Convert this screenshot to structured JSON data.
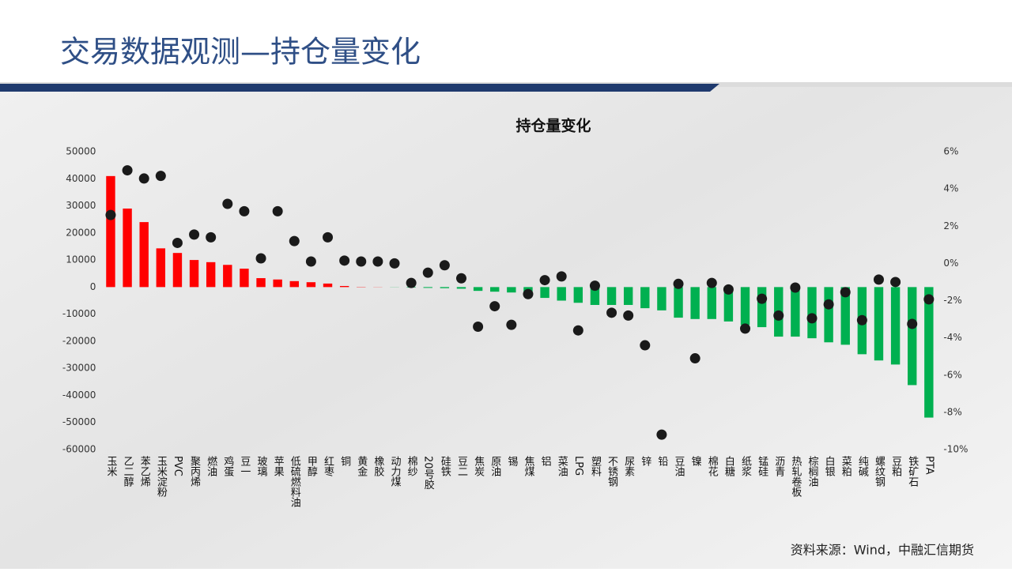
{
  "slide": {
    "title": "交易数据观测—持仓量变化",
    "source": "资料来源：Wind，中融汇信期货"
  },
  "chart_data": {
    "type": "bar",
    "title": "持仓量变化",
    "categories": [
      "玉米",
      "乙二醇",
      "苯乙烯",
      "玉米淀粉",
      "PVC",
      "聚丙烯",
      "燃油",
      "鸡蛋",
      "豆一",
      "玻璃",
      "苹果",
      "低硫燃料油",
      "甲醇",
      "红枣",
      "铜",
      "黄金",
      "橡胶",
      "动力煤",
      "棉纱",
      "20号胶",
      "硅铁",
      "豆二",
      "焦炭",
      "原油",
      "锡",
      "焦煤",
      "铝",
      "菜油",
      "LPG",
      "塑料",
      "不锈钢",
      "尿素",
      "锌",
      "铅",
      "豆油",
      "镍",
      "棉花",
      "白糖",
      "纸浆",
      "锰硅",
      "沥青",
      "热轧卷板",
      "棕榈油",
      "白银",
      "菜粕",
      "纯碱",
      "螺纹钢",
      "豆粕",
      "铁矿石",
      "PTA"
    ],
    "series": [
      {
        "type": "bar",
        "color": "#ff0000",
        "negative_color": "#00b050",
        "values": [
          41000,
          29000,
          24000,
          14300,
          12600,
          10000,
          9200,
          8200,
          6800,
          3300,
          2800,
          2200,
          1800,
          1300,
          400,
          100,
          50,
          -50,
          -200,
          -300,
          -400,
          -600,
          -1400,
          -1700,
          -2000,
          -2800,
          -4000,
          -5000,
          -5800,
          -6600,
          -6600,
          -6600,
          -7800,
          -8600,
          -11300,
          -11800,
          -11800,
          -12700,
          -14000,
          -14800,
          -18300,
          -18300,
          -18900,
          -20400,
          -21300,
          -24800,
          -27100,
          -28600,
          -36200,
          -48200
        ]
      },
      {
        "type": "scatter",
        "axis": "y2",
        "color": "#1a1a1a",
        "values": [
          2.6,
          5.0,
          4.56,
          4.7,
          1.1,
          1.55,
          1.4,
          3.2,
          2.8,
          0.27,
          2.8,
          1.2,
          0.1,
          1.4,
          0.15,
          0.1,
          0.1,
          0.0,
          -1.05,
          -0.5,
          -0.1,
          -0.8,
          -3.4,
          -2.3,
          -3.3,
          -1.65,
          -0.9,
          -0.7,
          -3.6,
          -1.2,
          -2.65,
          -2.8,
          -4.4,
          -9.2,
          -1.1,
          -5.1,
          -1.05,
          -1.4,
          -3.5,
          -1.9,
          -2.8,
          -1.3,
          -2.95,
          -2.2,
          -1.55,
          -3.05,
          -0.87,
          -1.0,
          -3.25,
          -1.93
        ]
      }
    ],
    "ylim": [
      -60000,
      50000
    ],
    "yticks": [
      -60000,
      -50000,
      -40000,
      -30000,
      -20000,
      -10000,
      0,
      10000,
      20000,
      30000,
      40000,
      50000
    ],
    "y2lim": [
      -10,
      6
    ],
    "y2ticks": [
      {
        "value": -10,
        "label": "-10%"
      },
      {
        "value": -8,
        "label": "-8%"
      },
      {
        "value": -6,
        "label": "-6%"
      },
      {
        "value": -4,
        "label": "-4%"
      },
      {
        "value": -2,
        "label": "-2%"
      },
      {
        "value": 0,
        "label": "0%"
      },
      {
        "value": 2,
        "label": "2%"
      },
      {
        "value": 4,
        "label": "4%"
      },
      {
        "value": 6,
        "label": "6%"
      }
    ]
  }
}
